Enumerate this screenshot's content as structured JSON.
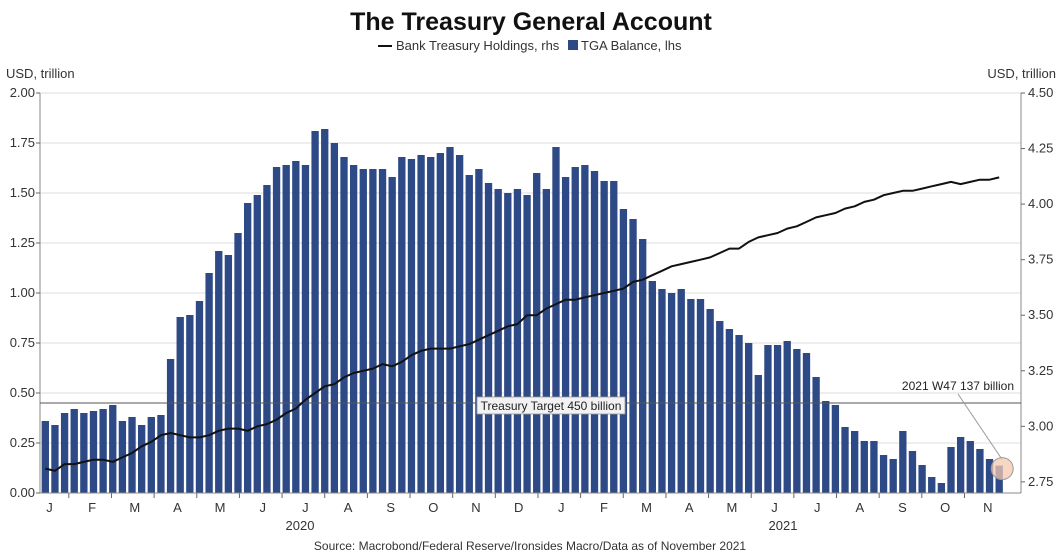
{
  "chart_data": {
    "type": "bar",
    "title": "The Treasury General Account",
    "legend": [
      {
        "name": "Bank Treasury Holdings, rhs",
        "type": "line",
        "color": "#111111"
      },
      {
        "name": "TGA Balance, lhs",
        "type": "bar",
        "color": "#2e4a86"
      }
    ],
    "legend_position": "top-center",
    "y_left": {
      "label": "USD, trillion",
      "range": [
        0,
        2.0
      ],
      "ticks": [
        "0.00",
        "0.25",
        "0.50",
        "0.75",
        "1.00",
        "1.25",
        "1.50",
        "1.75",
        "2.00"
      ]
    },
    "y_right": {
      "label": "USD, trillion",
      "range": [
        2.7,
        4.5
      ],
      "ticks": [
        "2.75",
        "3.00",
        "3.25",
        "3.50",
        "3.75",
        "4.00",
        "4.25",
        "4.50"
      ]
    },
    "x_month_labels": [
      "J",
      "F",
      "M",
      "A",
      "M",
      "J",
      "J",
      "A",
      "S",
      "O",
      "N",
      "D",
      "J",
      "F",
      "M",
      "A",
      "M",
      "J",
      "J",
      "A",
      "S",
      "O",
      "N"
    ],
    "x_year_labels": [
      "2020",
      "2021"
    ],
    "grid": true,
    "series": [
      {
        "name": "TGA Balance, lhs",
        "axis": "left",
        "values": [
          0.36,
          0.34,
          0.4,
          0.42,
          0.4,
          0.41,
          0.42,
          0.44,
          0.36,
          0.38,
          0.34,
          0.38,
          0.39,
          0.67,
          0.88,
          0.89,
          0.96,
          1.1,
          1.21,
          1.19,
          1.3,
          1.45,
          1.49,
          1.54,
          1.63,
          1.64,
          1.66,
          1.64,
          1.81,
          1.82,
          1.75,
          1.68,
          1.64,
          1.62,
          1.62,
          1.62,
          1.58,
          1.68,
          1.67,
          1.69,
          1.68,
          1.7,
          1.73,
          1.69,
          1.59,
          1.62,
          1.55,
          1.52,
          1.5,
          1.52,
          1.49,
          1.6,
          1.52,
          1.73,
          1.58,
          1.63,
          1.64,
          1.61,
          1.56,
          1.56,
          1.42,
          1.37,
          1.27,
          1.06,
          1.02,
          1.0,
          1.02,
          0.97,
          0.97,
          0.92,
          0.86,
          0.82,
          0.79,
          0.75,
          0.59,
          0.74,
          0.74,
          0.76,
          0.72,
          0.7,
          0.58,
          0.46,
          0.44,
          0.33,
          0.31,
          0.26,
          0.26,
          0.19,
          0.17,
          0.31,
          0.21,
          0.14,
          0.08,
          0.05,
          0.23,
          0.28,
          0.26,
          0.22,
          0.17,
          0.137
        ]
      },
      {
        "name": "Bank Treasury Holdings, rhs",
        "axis": "right",
        "values": [
          2.81,
          2.8,
          2.83,
          2.83,
          2.84,
          2.85,
          2.85,
          2.84,
          2.86,
          2.88,
          2.91,
          2.93,
          2.96,
          2.97,
          2.96,
          2.95,
          2.95,
          2.96,
          2.98,
          2.99,
          2.99,
          2.98,
          3.0,
          3.01,
          3.03,
          3.06,
          3.08,
          3.12,
          3.15,
          3.18,
          3.19,
          3.22,
          3.24,
          3.25,
          3.26,
          3.28,
          3.27,
          3.29,
          3.32,
          3.34,
          3.35,
          3.35,
          3.35,
          3.36,
          3.37,
          3.39,
          3.41,
          3.43,
          3.45,
          3.46,
          3.5,
          3.5,
          3.53,
          3.55,
          3.57,
          3.57,
          3.58,
          3.59,
          3.6,
          3.61,
          3.62,
          3.65,
          3.66,
          3.68,
          3.7,
          3.72,
          3.73,
          3.74,
          3.75,
          3.76,
          3.78,
          3.8,
          3.8,
          3.83,
          3.85,
          3.86,
          3.87,
          3.89,
          3.9,
          3.92,
          3.94,
          3.95,
          3.96,
          3.98,
          3.99,
          4.01,
          4.02,
          4.04,
          4.05,
          4.06,
          4.06,
          4.07,
          4.08,
          4.09,
          4.1,
          4.09,
          4.1,
          4.11,
          4.11,
          4.12
        ]
      }
    ],
    "reference_line": {
      "label": "Treasury Target 450 billion",
      "value": 0.45,
      "axis": "left"
    },
    "annotation": {
      "label": "2021 W47 137 billion",
      "value": 0.137
    },
    "source": "Source: Macrobond/Federal Reserve/Ironsides Macro/Data as of November 2021"
  }
}
